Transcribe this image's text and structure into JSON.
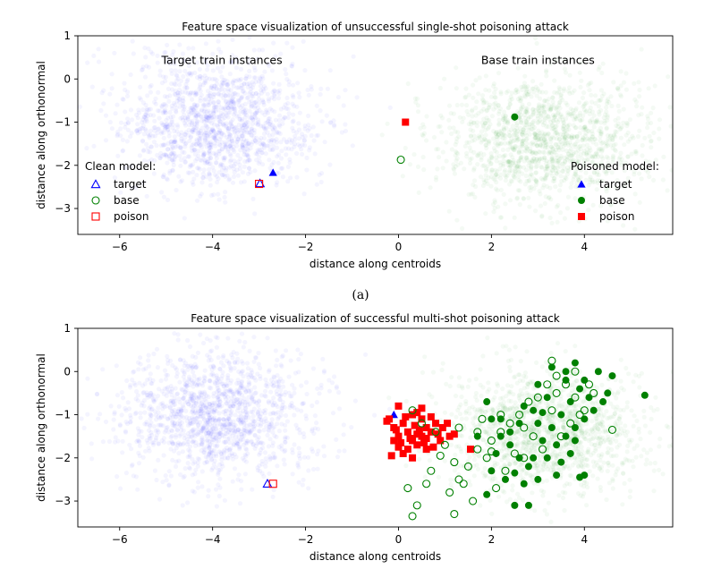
{
  "chart_data": [
    {
      "type": "scatter",
      "title": "Feature space visualization of unsuccessful single-shot poisoning attack",
      "xlabel": "distance along centroids",
      "ylabel": "distance along orthonormal",
      "xlim": [
        -6.9,
        5.9
      ],
      "ylim": [
        -3.6,
        1.0
      ],
      "xticks": [
        -6,
        -4,
        -2,
        0,
        2,
        4
      ],
      "xtick_labels": [
        "−6",
        "−4",
        "−2",
        "0",
        "2",
        "4"
      ],
      "yticks": [
        1,
        0,
        -1,
        -2,
        -3
      ],
      "ytick_labels": [
        "1",
        "0",
        "−1",
        "−2",
        "−3"
      ],
      "background_clouds": [
        {
          "name": "Target train instances",
          "color": "#0000ff",
          "center": [
            -3.9,
            -1.0
          ],
          "spread": [
            1.05,
            0.75
          ],
          "count": 1400
        },
        {
          "name": "Base train instances",
          "color": "#008000",
          "center": [
            3.1,
            -1.4
          ],
          "spread": [
            1.1,
            0.72
          ],
          "count": 1400
        }
      ],
      "annotations": [
        {
          "text": "Target train instances",
          "x": -3.8,
          "y": 0.35
        },
        {
          "text": "Base train instances",
          "x": 3.0,
          "y": 0.35
        }
      ],
      "series": [
        {
          "name": "target",
          "model": "clean",
          "marker": "triangle",
          "filled": false,
          "color": "#0000ff",
          "points": [
            [
              -2.98,
              -2.42
            ]
          ]
        },
        {
          "name": "base",
          "model": "clean",
          "marker": "circle",
          "filled": false,
          "color": "#008000",
          "points": [
            [
              0.05,
              -1.87
            ]
          ]
        },
        {
          "name": "poison",
          "model": "clean",
          "marker": "square",
          "filled": false,
          "color": "#ff0000",
          "points": [
            [
              -3.0,
              -2.43
            ]
          ]
        },
        {
          "name": "target",
          "model": "poisoned",
          "marker": "triangle",
          "filled": true,
          "color": "#0000ff",
          "points": [
            [
              -2.7,
              -2.17
            ]
          ]
        },
        {
          "name": "base",
          "model": "poisoned",
          "marker": "circle",
          "filled": true,
          "color": "#008000",
          "points": [
            [
              2.5,
              -0.88
            ]
          ]
        },
        {
          "name": "poison",
          "model": "poisoned",
          "marker": "square",
          "filled": true,
          "color": "#ff0000",
          "points": [
            [
              0.15,
              -1.0
            ]
          ]
        }
      ],
      "legends": [
        {
          "title": "Clean model:",
          "location": "lower-left",
          "entries": [
            "target",
            "base",
            "poison"
          ],
          "filled": false
        },
        {
          "title": "Poisoned model:",
          "location": "lower-right",
          "entries": [
            "target",
            "base",
            "poison"
          ],
          "filled": true
        }
      ]
    },
    {
      "type": "scatter",
      "title": "Feature space visualization of successful multi-shot poisoning attack",
      "xlabel": "distance along centroids",
      "ylabel": "distance along orthonormal",
      "xlim": [
        -6.9,
        5.9
      ],
      "ylim": [
        -3.6,
        1.0
      ],
      "xticks": [
        -6,
        -4,
        -2,
        0,
        2,
        4
      ],
      "xtick_labels": [
        "−6",
        "−4",
        "−2",
        "0",
        "2",
        "4"
      ],
      "yticks": [
        1,
        0,
        -1,
        -2,
        -3
      ],
      "ytick_labels": [
        "1",
        "0",
        "−1",
        "−2",
        "−3"
      ],
      "background_clouds": [
        {
          "name": "target-train",
          "color": "#0000ff",
          "center": [
            -3.9,
            -1.0
          ],
          "spread": [
            1.05,
            0.75
          ],
          "count": 1400
        },
        {
          "name": "base-train",
          "color": "#008000",
          "center": [
            3.1,
            -1.4
          ],
          "spread": [
            1.1,
            0.72
          ],
          "count": 1400
        }
      ],
      "series": [
        {
          "name": "target",
          "model": "clean",
          "marker": "triangle",
          "filled": false,
          "color": "#0000ff",
          "points": [
            [
              -2.82,
              -2.6
            ]
          ]
        },
        {
          "name": "poison",
          "model": "clean",
          "marker": "square",
          "filled": false,
          "color": "#ff0000",
          "points": [
            [
              -2.7,
              -2.6
            ]
          ]
        },
        {
          "name": "target",
          "model": "poisoned",
          "marker": "triangle",
          "filled": true,
          "color": "#0000ff",
          "points": [
            [
              -0.1,
              -1.0
            ]
          ]
        },
        {
          "name": "poison",
          "model": "poisoned",
          "marker": "square",
          "filled": true,
          "color": "#ff0000",
          "points": [
            [
              0.0,
              -0.8
            ],
            [
              -0.2,
              -1.1
            ],
            [
              -0.1,
              -1.3
            ],
            [
              0.3,
              -1.0
            ],
            [
              0.1,
              -1.2
            ],
            [
              0.5,
              -1.1
            ],
            [
              0.4,
              -0.95
            ],
            [
              0.6,
              -1.3
            ],
            [
              0.2,
              -1.4
            ],
            [
              0.0,
              -1.5
            ],
            [
              -0.1,
              -1.6
            ],
            [
              0.3,
              -1.6
            ],
            [
              0.5,
              -1.5
            ],
            [
              0.7,
              -1.4
            ],
            [
              0.8,
              -1.2
            ],
            [
              0.2,
              -1.8
            ],
            [
              0.4,
              -1.7
            ],
            [
              0.6,
              -1.8
            ],
            [
              0.0,
              -1.75
            ],
            [
              -0.15,
              -1.95
            ],
            [
              0.1,
              -1.9
            ],
            [
              0.55,
              -1.65
            ],
            [
              0.9,
              -1.6
            ],
            [
              0.35,
              -1.25
            ],
            [
              0.7,
              -1.05
            ],
            [
              -0.05,
              -1.35
            ],
            [
              0.25,
              -1.55
            ],
            [
              0.45,
              -1.35
            ],
            [
              0.15,
              -1.05
            ],
            [
              0.6,
              -1.55
            ],
            [
              0.85,
              -1.45
            ],
            [
              1.1,
              -1.5
            ],
            [
              1.05,
              -1.2
            ],
            [
              0.3,
              -2.0
            ],
            [
              0.5,
              -0.85
            ],
            [
              -0.25,
              -1.15
            ],
            [
              0.05,
              -1.65
            ],
            [
              0.75,
              -1.75
            ],
            [
              0.4,
              -1.45
            ],
            [
              1.2,
              -1.45
            ],
            [
              1.55,
              -1.8
            ],
            [
              0.95,
              -1.3
            ]
          ]
        },
        {
          "name": "base",
          "model": "clean",
          "marker": "circle",
          "filled": false,
          "color": "#008000",
          "points": [
            [
              0.3,
              -0.9
            ],
            [
              0.5,
              -1.2
            ],
            [
              0.8,
              -1.4
            ],
            [
              1.0,
              -1.7
            ],
            [
              1.2,
              -2.1
            ],
            [
              1.3,
              -2.5
            ],
            [
              0.6,
              -2.6
            ],
            [
              0.2,
              -2.7
            ],
            [
              0.4,
              -3.1
            ],
            [
              0.3,
              -3.35
            ],
            [
              1.2,
              -3.3
            ],
            [
              1.6,
              -3.0
            ],
            [
              1.4,
              -2.6
            ],
            [
              1.5,
              -2.2
            ],
            [
              0.9,
              -1.95
            ],
            [
              1.7,
              -1.8
            ],
            [
              2.0,
              -1.6
            ],
            [
              2.2,
              -1.4
            ],
            [
              2.4,
              -1.2
            ],
            [
              2.6,
              -1.0
            ],
            [
              2.8,
              -0.7
            ],
            [
              3.0,
              -0.6
            ],
            [
              3.2,
              -0.3
            ],
            [
              3.4,
              -0.1
            ],
            [
              3.3,
              0.25
            ],
            [
              3.6,
              -0.3
            ],
            [
              3.8,
              -0.6
            ],
            [
              4.0,
              -0.9
            ],
            [
              4.2,
              -0.5
            ],
            [
              2.9,
              -1.5
            ],
            [
              2.5,
              -1.9
            ],
            [
              2.3,
              -2.3
            ],
            [
              2.1,
              -2.7
            ],
            [
              2.7,
              -2.0
            ],
            [
              3.1,
              -1.8
            ],
            [
              3.5,
              -1.5
            ],
            [
              3.7,
              -1.2
            ],
            [
              3.9,
              -1.0
            ],
            [
              4.1,
              -0.3
            ],
            [
              3.3,
              -0.9
            ],
            [
              2.7,
              -1.3
            ],
            [
              1.8,
              -1.1
            ],
            [
              1.3,
              -1.3
            ],
            [
              0.7,
              -2.3
            ],
            [
              1.1,
              -2.8
            ],
            [
              1.9,
              -2.0
            ],
            [
              2.0,
              -1.85
            ],
            [
              3.8,
              0.0
            ],
            [
              2.2,
              -1.0
            ],
            [
              1.7,
              -1.4
            ],
            [
              4.6,
              -1.35
            ],
            [
              3.4,
              -0.5
            ]
          ]
        },
        {
          "name": "base",
          "model": "poisoned",
          "marker": "circle",
          "filled": true,
          "color": "#008000",
          "points": [
            [
              1.9,
              -0.7
            ],
            [
              2.0,
              -1.1
            ],
            [
              2.2,
              -1.5
            ],
            [
              2.4,
              -1.7
            ],
            [
              2.6,
              -2.0
            ],
            [
              2.8,
              -2.2
            ],
            [
              3.0,
              -2.5
            ],
            [
              3.2,
              -2.0
            ],
            [
              3.4,
              -1.7
            ],
            [
              3.6,
              -1.5
            ],
            [
              3.8,
              -1.3
            ],
            [
              4.0,
              -1.1
            ],
            [
              4.2,
              -0.9
            ],
            [
              4.4,
              -0.7
            ],
            [
              4.6,
              -0.1
            ],
            [
              3.3,
              0.1
            ],
            [
              3.6,
              0.0
            ],
            [
              3.8,
              0.2
            ],
            [
              4.0,
              -0.2
            ],
            [
              4.3,
              0.0
            ],
            [
              5.3,
              -0.55
            ],
            [
              2.8,
              -3.1
            ],
            [
              2.5,
              -3.1
            ],
            [
              1.9,
              -2.85
            ],
            [
              2.3,
              -2.5
            ],
            [
              2.7,
              -2.6
            ],
            [
              3.1,
              -1.6
            ],
            [
              3.5,
              -1.0
            ],
            [
              3.7,
              -0.7
            ],
            [
              3.9,
              -0.4
            ],
            [
              2.9,
              -0.9
            ],
            [
              2.6,
              -1.2
            ],
            [
              2.1,
              -1.9
            ],
            [
              1.7,
              -1.5
            ],
            [
              3.0,
              -1.2
            ],
            [
              3.3,
              -1.3
            ],
            [
              3.7,
              -1.9
            ],
            [
              4.0,
              -2.4
            ],
            [
              3.5,
              -2.1
            ],
            [
              2.9,
              -2.0
            ],
            [
              2.4,
              -1.4
            ],
            [
              2.7,
              -0.8
            ],
            [
              3.2,
              -0.6
            ],
            [
              3.6,
              -0.2
            ],
            [
              4.1,
              -0.6
            ],
            [
              4.5,
              -0.5
            ],
            [
              3.0,
              -0.3
            ],
            [
              2.2,
              -1.1
            ],
            [
              3.8,
              -1.6
            ],
            [
              2.5,
              -2.35
            ],
            [
              3.4,
              -2.4
            ],
            [
              2.0,
              -2.3
            ],
            [
              3.9,
              -2.45
            ],
            [
              3.1,
              -0.95
            ]
          ]
        }
      ]
    }
  ],
  "caption": "(a)"
}
